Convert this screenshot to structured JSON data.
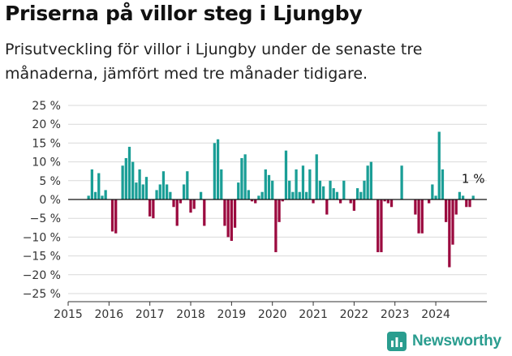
{
  "title": "Priserna på villor steg i Ljungby",
  "subtitle": "Prisutveckling för villor i Ljungby under de senaste tre månaderna, jämfört med tre månader tidigare.",
  "brand": {
    "name": "Newsworthy"
  },
  "colors": {
    "positive": "#1a9e96",
    "negative": "#9b0a3f",
    "brand": "#2a9d8f"
  },
  "chart_data": {
    "type": "bar",
    "title": "Priserna på villor steg i Ljungby",
    "xlabel": "",
    "ylabel": "",
    "ylim": [
      -25,
      25
    ],
    "yticks": [
      25,
      20,
      15,
      10,
      5,
      0,
      -5,
      -10,
      -15,
      -20,
      -25
    ],
    "ytick_labels": [
      "25 %",
      "20 %",
      "15 %",
      "10 %",
      "5 %",
      "0 %",
      "−5 %",
      "−10 %",
      "−15 %",
      "−20 %",
      "−25 %"
    ],
    "xlim": [
      2015.0,
      2025.25
    ],
    "xticks": [
      2015,
      2016,
      2017,
      2018,
      2019,
      2020,
      2021,
      2022,
      2023,
      2024
    ],
    "xtick_labels": [
      "2015",
      "2016",
      "2017",
      "2018",
      "2019",
      "2020",
      "2021",
      "2022",
      "2023",
      "2024"
    ],
    "start": 2015.5,
    "step": 0.08333,
    "values": [
      1,
      8,
      2,
      7,
      1,
      2.5,
      0,
      -8.5,
      -9,
      0,
      9,
      11,
      14,
      10,
      4.5,
      8,
      4,
      6,
      -4.5,
      -5,
      2.5,
      4,
      7.5,
      4,
      2,
      -2,
      -7,
      -1,
      4,
      7.5,
      -3.5,
      -2.5,
      0,
      2,
      -7,
      0,
      0,
      15,
      16,
      8,
      -7,
      -10,
      -11,
      -7.5,
      4.5,
      11,
      12,
      2.5,
      -0.5,
      -1,
      1,
      2,
      8,
      6.5,
      5,
      -14,
      -6,
      -0.5,
      13,
      5,
      2,
      8,
      2,
      9,
      2,
      8,
      -1,
      12,
      5,
      3.5,
      -4,
      5,
      3,
      2,
      -1,
      5,
      0,
      -1,
      -3,
      3,
      2,
      5,
      9,
      10,
      0,
      -14,
      -14,
      -0.5,
      -1,
      -2,
      0,
      0,
      9,
      0,
      0,
      0,
      -4,
      -9,
      -9,
      0,
      -1,
      4,
      1,
      18,
      8,
      -6,
      -18,
      -12,
      -4,
      2,
      1,
      -2,
      -2,
      1
    ],
    "annotation": {
      "text": "1 %",
      "index": 113
    }
  }
}
